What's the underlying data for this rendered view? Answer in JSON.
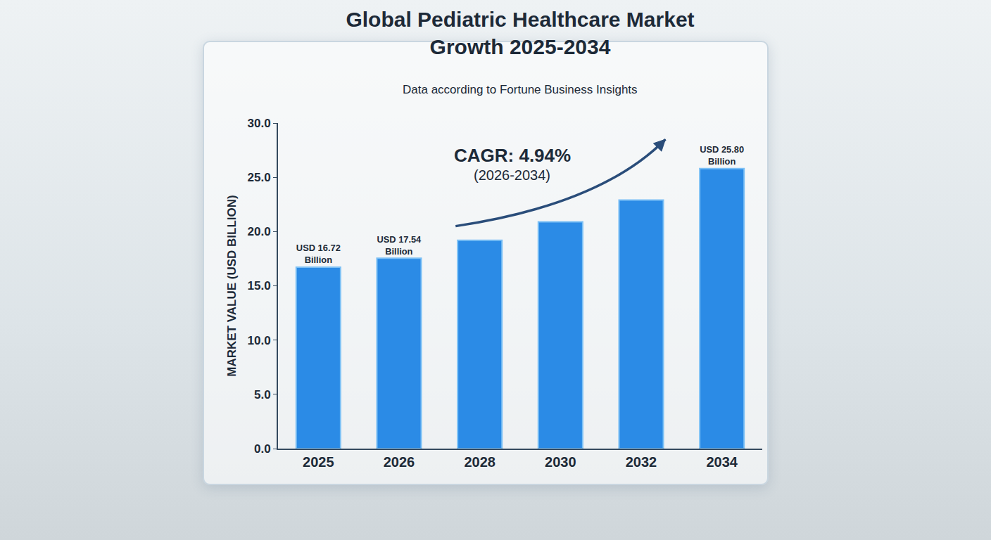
{
  "chart_data": {
    "type": "bar",
    "title": "Global Pediatric Healthcare Market Growth 2025-2034",
    "subtitle": "Data according to Fortune Business Insights",
    "y_label": "MARKET VALUE (USD BILLION)",
    "categories": [
      "2025",
      "2026",
      "2028",
      "2030",
      "2032",
      "2034"
    ],
    "values": [
      16.72,
      17.54,
      19.2,
      20.9,
      22.9,
      25.8
    ],
    "value_labels": [
      "USD 16.72 Billion",
      "USD 17.54 Billion",
      null,
      null,
      null,
      "USD 25.80 Billion"
    ],
    "data_labels": true,
    "color": "#2b8be6",
    "ylim": [
      0,
      30
    ],
    "yticks": [
      {
        "value": 0,
        "label": "0.0"
      },
      {
        "value": 5,
        "label": "5.0"
      },
      {
        "value": 10,
        "label": "10.0"
      },
      {
        "value": 15,
        "label": "15.0"
      },
      {
        "value": 20,
        "label": "20.0"
      },
      {
        "value": 25,
        "label": "25.0"
      },
      {
        "value": 30,
        "label": "30.0"
      }
    ],
    "grid": false,
    "annotations": [
      "CAGR: 4.94%",
      "(2026-2034)"
    ]
  }
}
